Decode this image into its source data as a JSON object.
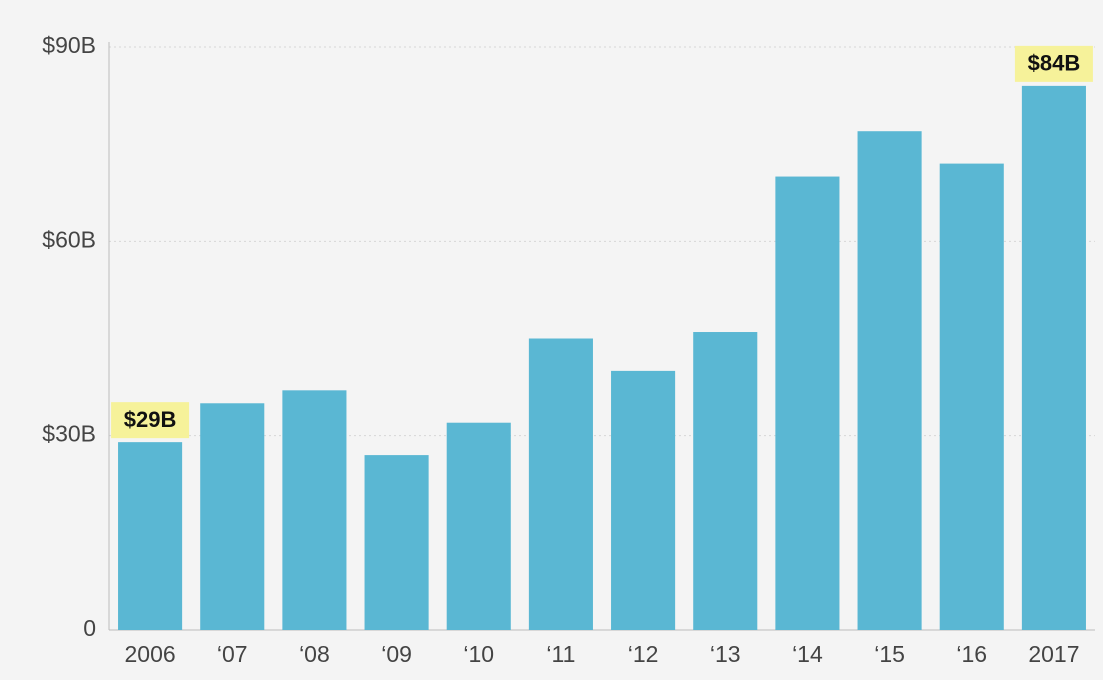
{
  "chart_data": {
    "type": "bar",
    "categories": [
      "2006",
      "‘07",
      "‘08",
      "‘09",
      "‘10",
      "‘11",
      "‘12",
      "‘13",
      "‘14",
      "‘15",
      "‘16",
      "2017"
    ],
    "values": [
      29,
      35,
      37,
      27,
      32,
      45,
      40,
      46,
      70,
      77,
      72,
      84
    ],
    "value_labels": [
      "$29B",
      null,
      null,
      null,
      null,
      null,
      null,
      null,
      null,
      null,
      null,
      "$84B"
    ],
    "color": "#5ab7d3",
    "ylim": [
      0,
      90
    ],
    "yticks": [
      0,
      {
        "value": 30,
        "label": "$30B"
      },
      {
        "value": 60,
        "label": "$60B"
      },
      {
        "value": 90,
        "label": "$90B"
      }
    ],
    "grid": true
  }
}
